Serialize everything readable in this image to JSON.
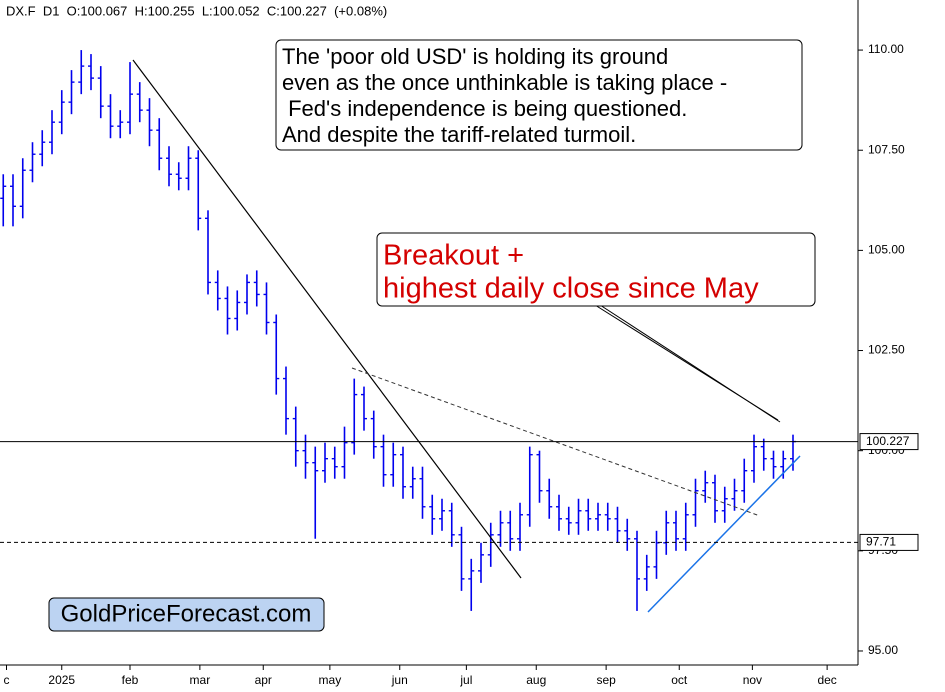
{
  "chart_data": {
    "type": "candlestick",
    "header": "DX.F  D1  O:100.067  H:100.255  L:100.052  C:100.227  (+0.08%)",
    "color": "#0000ee",
    "x": [
      -18,
      -15,
      -12,
      -9,
      -6,
      -3,
      0,
      3,
      6,
      9,
      12,
      15,
      18,
      21,
      24,
      27,
      30,
      33,
      36,
      39,
      42,
      45,
      48,
      51,
      54,
      57,
      60,
      63,
      66,
      69,
      72,
      75,
      78,
      81,
      84,
      87,
      90,
      93,
      96,
      99,
      102,
      105,
      108,
      111,
      114,
      117,
      120,
      123,
      126,
      129,
      132,
      135,
      138,
      141,
      144,
      147,
      150,
      153,
      156,
      159,
      162,
      165,
      168,
      171,
      174,
      177,
      180,
      183,
      186,
      189,
      192,
      195,
      198,
      201,
      204,
      207,
      210,
      213,
      216,
      219,
      222,
      225
    ],
    "open": [
      106.3,
      106.6,
      106.1,
      107.0,
      107.4,
      107.7,
      108.2,
      108.7,
      109.2,
      109.6,
      109.3,
      108.6,
      108.1,
      108.2,
      108.9,
      108.5,
      108.0,
      107.3,
      106.9,
      106.8,
      107.3,
      105.8,
      104.2,
      103.8,
      103.3,
      103.7,
      104.2,
      103.9,
      103.2,
      101.8,
      100.8,
      100.0,
      99.7,
      99.5,
      99.8,
      99.6,
      100.2,
      101.4,
      100.8,
      100.1,
      99.4,
      99.9,
      99.1,
      99.3,
      98.6,
      98.3,
      98.5,
      97.9,
      96.8,
      97.0,
      97.4,
      97.9,
      98.2,
      97.8,
      98.4,
      99.9,
      99.0,
      98.6,
      98.3,
      98.2,
      98.5,
      98.3,
      98.4,
      98.3,
      98.0,
      97.8,
      96.8,
      97.1,
      97.7,
      98.2,
      97.8,
      98.4,
      99.0,
      99.2,
      98.5,
      98.8,
      99.0,
      99.5,
      100.1,
      99.8,
      99.6,
      99.8
    ],
    "high": [
      106.9,
      106.9,
      107.3,
      107.7,
      108.0,
      108.5,
      109.0,
      109.5,
      110.0,
      109.9,
      109.6,
      108.9,
      108.5,
      109.7,
      109.2,
      108.8,
      108.3,
      107.6,
      107.2,
      107.6,
      107.5,
      106.0,
      104.5,
      104.1,
      104.0,
      104.4,
      104.5,
      104.2,
      103.4,
      102.1,
      101.1,
      100.4,
      100.1,
      100.2,
      100.1,
      100.6,
      101.8,
      101.6,
      101.0,
      100.4,
      100.2,
      100.1,
      99.6,
      99.6,
      98.9,
      98.8,
      98.7,
      98.1,
      97.3,
      97.7,
      98.2,
      98.5,
      98.5,
      98.7,
      100.1,
      100.0,
      99.3,
      98.9,
      98.6,
      98.8,
      98.8,
      98.7,
      98.7,
      98.6,
      98.3,
      98.0,
      97.4,
      98.0,
      98.5,
      98.5,
      98.7,
      99.3,
      99.5,
      99.4,
      99.1,
      99.3,
      99.8,
      100.4,
      100.3,
      100.0,
      100.0,
      100.4
    ],
    "low": [
      105.6,
      105.6,
      105.8,
      106.7,
      107.1,
      107.4,
      107.9,
      108.4,
      108.9,
      109.0,
      108.3,
      107.8,
      107.8,
      107.9,
      108.2,
      107.6,
      107.0,
      106.6,
      106.5,
      106.5,
      105.5,
      103.9,
      103.5,
      102.9,
      103.0,
      103.4,
      103.6,
      102.9,
      101.4,
      100.4,
      99.6,
      99.3,
      97.8,
      99.2,
      99.3,
      99.3,
      99.9,
      100.5,
      99.8,
      99.1,
      99.1,
      98.8,
      98.8,
      98.3,
      97.9,
      98.0,
      97.6,
      96.5,
      96.0,
      96.7,
      97.1,
      97.6,
      97.5,
      97.5,
      98.1,
      98.7,
      98.3,
      98.0,
      97.9,
      97.9,
      98.0,
      98.0,
      98.0,
      97.7,
      97.5,
      96.0,
      96.5,
      96.8,
      97.4,
      97.5,
      97.5,
      98.1,
      98.7,
      98.2,
      98.2,
      98.5,
      98.7,
      99.2,
      99.5,
      99.3,
      99.3,
      99.5
    ],
    "close": [
      106.6,
      106.1,
      107.0,
      107.4,
      107.7,
      108.2,
      108.7,
      109.2,
      109.6,
      109.3,
      108.6,
      108.1,
      108.2,
      108.9,
      108.5,
      108.0,
      107.3,
      106.9,
      106.8,
      107.3,
      105.8,
      104.2,
      103.8,
      103.3,
      103.7,
      104.2,
      103.9,
      103.2,
      101.8,
      100.8,
      100.0,
      99.7,
      99.5,
      99.8,
      99.6,
      100.2,
      101.4,
      100.8,
      100.1,
      99.4,
      99.9,
      99.1,
      99.3,
      98.6,
      98.3,
      98.5,
      97.9,
      96.8,
      97.0,
      97.4,
      97.9,
      98.2,
      97.8,
      98.4,
      99.9,
      99.0,
      98.6,
      98.3,
      98.2,
      98.5,
      98.3,
      98.4,
      98.3,
      98.0,
      97.8,
      96.8,
      97.1,
      97.7,
      98.2,
      97.8,
      98.4,
      99.0,
      99.2,
      98.5,
      98.8,
      99.0,
      99.5,
      100.1,
      99.8,
      99.6,
      99.8,
      100.227
    ],
    "xlim": [
      -19,
      245
    ],
    "xticks": [
      {
        "value": -17,
        "label": "c"
      },
      {
        "value": 0,
        "label": "2025"
      },
      {
        "value": 21,
        "label": "feb"
      },
      {
        "value": 42.5,
        "label": "mar"
      },
      {
        "value": 62,
        "label": "apr"
      },
      {
        "value": 82.5,
        "label": "may"
      },
      {
        "value": 104,
        "label": "jun"
      },
      {
        "value": 124.5,
        "label": "jul"
      },
      {
        "value": 146,
        "label": "aug"
      },
      {
        "value": 167.5,
        "label": "sep"
      },
      {
        "value": 190,
        "label": "oct"
      },
      {
        "value": 212.5,
        "label": "nov"
      },
      {
        "value": 235.5,
        "label": "dec"
      }
    ],
    "ylim": [
      94.65,
      111.25
    ],
    "yticks": [
      {
        "value": 95,
        "label": "95.00"
      },
      {
        "value": 97.5,
        "label": "97.50"
      },
      {
        "value": 100,
        "label": "100.00"
      },
      {
        "value": 102.5,
        "label": "102.50"
      },
      {
        "value": 105,
        "label": "105.00"
      },
      {
        "value": 107.5,
        "label": "107.50"
      },
      {
        "value": 110,
        "label": "110.00"
      }
    ],
    "hlines": [
      {
        "value": 100.227,
        "style": "solid"
      },
      {
        "value": 97.71,
        "style": "dashed"
      }
    ],
    "annotations": [
      {
        "lines": [
          "The 'poor old USD' is holding its ground",
          "even as the once unthinkable is taking place -",
          " Fed's independence is being questioned.",
          "And despite the tariff-related turmoil."
        ]
      },
      {
        "lines": [
          "Breakout +",
          "highest daily close since May"
        ]
      }
    ],
    "watermark": "GoldPriceForecast.com"
  }
}
